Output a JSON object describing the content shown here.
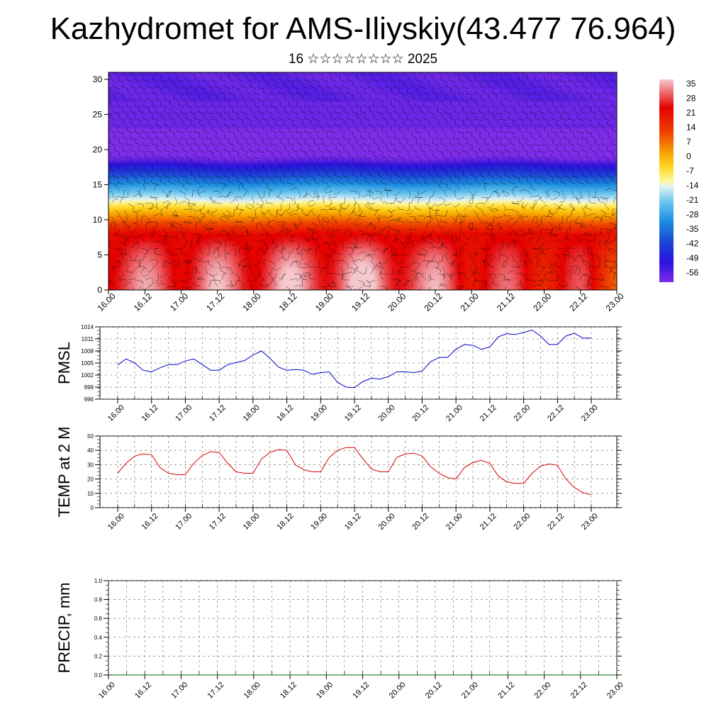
{
  "title": "Kazhydromet for AMS-Iliyskiy(43.477 76.964)",
  "subtitle": "16 ☆☆☆☆☆☆☆☆ 2025",
  "chart_data": [
    {
      "type": "heatmap",
      "name": "vertical-profile",
      "description_note": "",
      "x_categories": [
        "16.00",
        "16.12",
        "17.00",
        "17.12",
        "18.00",
        "18.12",
        "19.00",
        "19.12",
        "20.00",
        "20.12",
        "21.00",
        "21.12",
        "22.00",
        "22.12",
        "23.00"
      ],
      "y_ticks": [
        0,
        5,
        10,
        15,
        20,
        25,
        30
      ],
      "ylim": [
        0,
        31
      ],
      "xlim": [
        0,
        14
      ],
      "colorbar_labels": [
        "35",
        "28",
        "21",
        "14",
        "7",
        "0",
        "-7",
        "-14",
        "-21",
        "-28",
        "-35",
        "-42",
        "-49",
        "-56"
      ],
      "colorbar_range": [
        -60,
        38
      ],
      "surface_temp_by_x": [
        24,
        36,
        23,
        38,
        24,
        40,
        25,
        42,
        25,
        37,
        20,
        32,
        17,
        30,
        9
      ]
    },
    {
      "type": "line",
      "name": "pmsl",
      "ylabel": "PMSL",
      "ylim": [
        996,
        1014
      ],
      "y_ticks": [
        996,
        999,
        1002,
        1005,
        1008,
        1011,
        1014
      ],
      "x_categories": [
        "16.00",
        "16.12",
        "17.00",
        "17.12",
        "18.00",
        "18.12",
        "19.00",
        "19.12",
        "20.00",
        "20.12",
        "21.00",
        "21.12",
        "22.00",
        "22.12",
        "23.00"
      ],
      "color": "#0000cc",
      "x": [
        0,
        0.25,
        0.5,
        0.75,
        1,
        1.25,
        1.5,
        1.75,
        2,
        2.25,
        2.5,
        2.75,
        3,
        3.25,
        3.5,
        3.75,
        4,
        4.25,
        4.5,
        4.75,
        5,
        5.25,
        5.5,
        5.75,
        6,
        6.25,
        6.5,
        6.75,
        7,
        7.25,
        7.5,
        7.75,
        8,
        8.25,
        8.5,
        8.75,
        9,
        9.25,
        9.5,
        9.75,
        10,
        10.25,
        10.5,
        10.75,
        11,
        11.25,
        11.5,
        11.75,
        12,
        12.25,
        12.5,
        12.75,
        13,
        13.25,
        13.5,
        13.75,
        14
      ],
      "values": [
        1004.5,
        1006,
        1005,
        1003.2,
        1002.8,
        1003.8,
        1004.6,
        1004.6,
        1005.5,
        1006,
        1004.6,
        1003.2,
        1003.2,
        1004.6,
        1005.1,
        1005.6,
        1007,
        1008,
        1006.2,
        1004,
        1003.2,
        1003.4,
        1003.2,
        1002.2,
        1002.6,
        1002.8,
        1000.2,
        999,
        998.9,
        1000.4,
        1001.2,
        1001,
        1001.6,
        1002.8,
        1002.8,
        1002.6,
        1003,
        1005.3,
        1006.4,
        1006.4,
        1008.4,
        1009.6,
        1009.4,
        1008.4,
        1009,
        1011.5,
        1012.3,
        1012.1,
        1012.6,
        1013.2,
        1011.7,
        1009.6,
        1009.6,
        1011.7,
        1012.4,
        1011.2,
        1011.2
      ]
    },
    {
      "type": "line",
      "name": "temp-2m",
      "ylabel": "TEMP at 2 M",
      "ylim": [
        0,
        50
      ],
      "y_ticks": [
        0,
        10,
        20,
        30,
        40,
        50
      ],
      "x_categories": [
        "16.00",
        "16.12",
        "17.00",
        "17.12",
        "18.00",
        "18.12",
        "19.00",
        "19.12",
        "20.00",
        "20.12",
        "21.00",
        "21.12",
        "22.00",
        "22.12",
        "23.00"
      ],
      "color": "#dd0000",
      "x": [
        0,
        0.25,
        0.5,
        0.75,
        1,
        1.25,
        1.5,
        1.75,
        2,
        2.25,
        2.5,
        2.75,
        3,
        3.25,
        3.5,
        3.75,
        4,
        4.25,
        4.5,
        4.75,
        5,
        5.25,
        5.5,
        5.75,
        6,
        6.25,
        6.5,
        6.75,
        7,
        7.25,
        7.5,
        7.75,
        8,
        8.25,
        8.5,
        8.75,
        9,
        9.25,
        9.5,
        9.75,
        10,
        10.25,
        10.5,
        10.75,
        11,
        11.25,
        11.5,
        11.75,
        12,
        12.25,
        12.5,
        12.75,
        13,
        13.25,
        13.5,
        13.75,
        14
      ],
      "values": [
        24,
        31,
        36,
        37.5,
        37,
        28,
        24,
        23,
        23,
        31,
        36.5,
        39,
        38.5,
        31,
        25,
        24,
        24,
        34,
        38.5,
        40.5,
        40,
        30,
        26.5,
        25,
        25,
        35,
        40,
        42,
        42,
        34,
        27,
        25,
        25,
        35,
        37.5,
        38,
        36,
        28.5,
        24,
        21,
        20,
        28,
        31.5,
        33,
        31,
        22,
        18,
        17,
        17,
        24,
        29,
        30.5,
        29.5,
        20,
        14,
        10.5,
        9
      ]
    },
    {
      "type": "line",
      "name": "precip",
      "ylabel": "PRECIP, mm",
      "ylim": [
        0,
        1
      ],
      "y_ticks": [
        "0.0",
        "0.2",
        "0.4",
        "0.6",
        "0.8",
        "1.0"
      ],
      "x_categories": [
        "16.00",
        "16.12",
        "17.00",
        "17.12",
        "18.00",
        "18.12",
        "19.00",
        "19.12",
        "20.00",
        "20.12",
        "21.00",
        "21.12",
        "22.00",
        "22.12",
        "23.00"
      ],
      "color": "#006000",
      "x": [
        0,
        14
      ],
      "values": [
        0,
        0
      ]
    }
  ]
}
